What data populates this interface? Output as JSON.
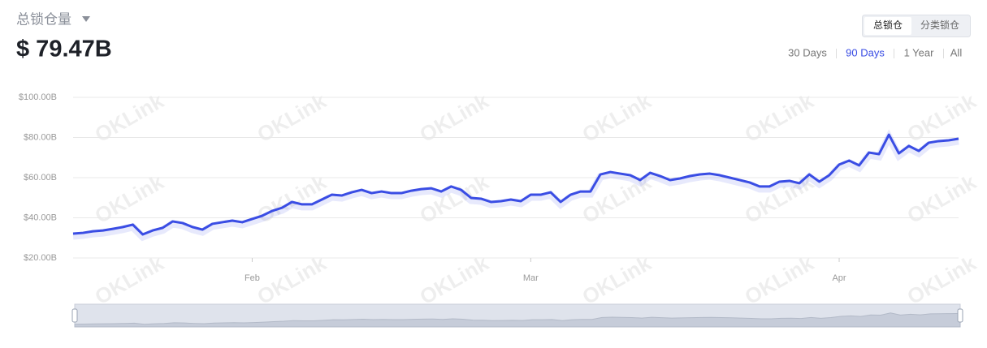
{
  "header": {
    "title": "总锁仓量",
    "value": "$ 79.47B"
  },
  "tabs": [
    "总锁仓",
    "分类锁仓"
  ],
  "ranges": [
    "30 Days",
    "90 Days",
    "1 Year",
    "All"
  ],
  "watermark": "OKLink",
  "chart_data": {
    "type": "line",
    "categories": [
      null,
      null,
      null,
      null,
      null,
      null,
      null,
      null,
      null,
      null,
      null,
      null,
      null,
      null,
      null,
      null,
      null,
      null,
      "Feb",
      null,
      null,
      null,
      null,
      null,
      null,
      null,
      null,
      null,
      null,
      null,
      null,
      null,
      null,
      null,
      null,
      null,
      null,
      null,
      null,
      null,
      null,
      null,
      null,
      null,
      null,
      null,
      "Mar",
      null,
      null,
      null,
      null,
      null,
      null,
      null,
      null,
      null,
      null,
      null,
      null,
      null,
      null,
      null,
      null,
      null,
      null,
      null,
      null,
      null,
      null,
      null,
      null,
      null,
      null,
      null,
      null,
      null,
      null,
      "Apr",
      null,
      null,
      null,
      null,
      null,
      null,
      null,
      null,
      null,
      null,
      null,
      null
    ],
    "series": [
      {
        "name": "总锁仓",
        "color": "#3a4de4",
        "values": [
          32.1,
          32.5,
          33.3,
          33.7,
          34.5,
          35.4,
          36.6,
          31.7,
          33.7,
          35,
          38.2,
          37.4,
          35.4,
          34.1,
          37,
          37.8,
          38.6,
          37.8,
          39.4,
          41,
          43.4,
          45,
          47.9,
          46.7,
          46.7,
          49.1,
          51.5,
          51.1,
          52.7,
          53.9,
          52.3,
          53.1,
          52.3,
          52.3,
          53.5,
          54.3,
          54.7,
          53.1,
          55.6,
          53.9,
          49.9,
          49.5,
          47.9,
          48.3,
          49.1,
          48.3,
          51.5,
          51.5,
          52.7,
          47.9,
          51.5,
          53.1,
          53.1,
          61.6,
          62.8,
          62,
          61.2,
          58.8,
          62.4,
          60.8,
          58.8,
          59.6,
          60.8,
          61.6,
          62,
          61.2,
          60,
          58.8,
          57.6,
          55.6,
          55.6,
          58,
          58.4,
          57.2,
          61.6,
          58,
          61.2,
          66.5,
          68.5,
          66.1,
          72.5,
          71.7,
          81.4,
          72.1,
          75.8,
          73.3,
          77.4,
          78.2,
          78.6,
          79.4
        ]
      }
    ],
    "ylim": [
      20,
      100
    ],
    "yticks": [
      {
        "value": 20,
        "label": "$20.00B"
      },
      {
        "value": 40,
        "label": "$40.00B"
      },
      {
        "value": 60,
        "label": "$60.00B"
      },
      {
        "value": 80,
        "label": "$80.00B"
      },
      {
        "value": 100,
        "label": "$100.00B"
      }
    ],
    "grid": true
  }
}
